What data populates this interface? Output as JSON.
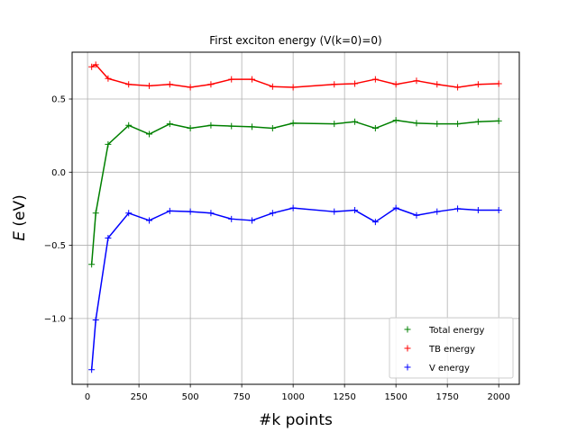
{
  "chart_data": {
    "type": "line",
    "title": "First exciton energy (V(k=0)=0)",
    "xlabel": "#k points",
    "ylabel_symbol": "E",
    "ylabel_unit": "(eV)",
    "xlim": [
      -75,
      2100
    ],
    "ylim": [
      -1.45,
      0.82
    ],
    "xticks": [
      0,
      250,
      500,
      750,
      1000,
      1250,
      1500,
      1750,
      2000
    ],
    "yticks": [
      -1.0,
      -0.5,
      0.0,
      0.5
    ],
    "ytick_labels": [
      "−1.0",
      "−0.5",
      "0.0",
      "0.5"
    ],
    "grid": true,
    "legend_position": "lower-right",
    "x": [
      20,
      40,
      100,
      200,
      300,
      400,
      500,
      600,
      700,
      800,
      900,
      1000,
      1200,
      1300,
      1400,
      1500,
      1600,
      1700,
      1800,
      1900,
      2000
    ],
    "series": [
      {
        "name": "Total energy",
        "color": "#008000",
        "values": [
          -0.63,
          -0.28,
          0.19,
          0.32,
          0.26,
          0.33,
          0.3,
          0.32,
          0.315,
          0.31,
          0.3,
          0.335,
          0.33,
          0.345,
          0.3,
          0.355,
          0.335,
          0.33,
          0.33,
          0.345,
          0.35
        ]
      },
      {
        "name": "TB energy",
        "color": "#ff0000",
        "values": [
          0.72,
          0.735,
          0.64,
          0.6,
          0.59,
          0.6,
          0.58,
          0.6,
          0.635,
          0.635,
          0.585,
          0.58,
          0.6,
          0.605,
          0.635,
          0.6,
          0.625,
          0.6,
          0.58,
          0.6,
          0.605
        ]
      },
      {
        "name": "V energy",
        "color": "#0000ff",
        "values": [
          -1.35,
          -1.01,
          -0.45,
          -0.28,
          -0.33,
          -0.265,
          -0.27,
          -0.28,
          -0.32,
          -0.33,
          -0.28,
          -0.245,
          -0.27,
          -0.26,
          -0.34,
          -0.245,
          -0.295,
          -0.27,
          -0.25,
          -0.26,
          -0.26
        ]
      }
    ]
  }
}
